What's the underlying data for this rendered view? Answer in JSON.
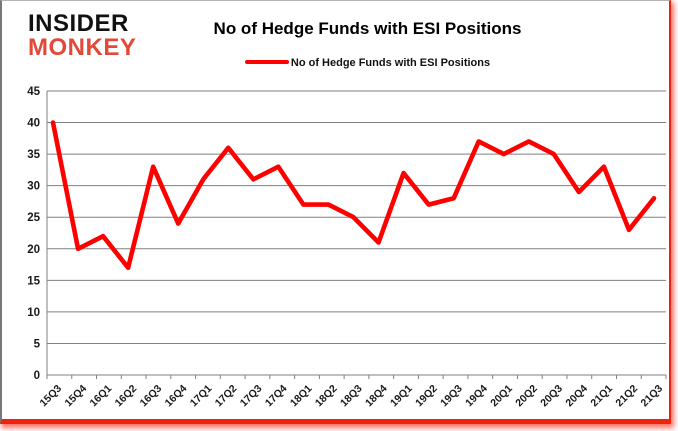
{
  "header": {
    "logo_line1": "INSIDER",
    "logo_line2": "MONKEY",
    "title": "No of Hedge Funds with ESI Positions",
    "legend_label": "No of Hedge Funds with ESI Positions"
  },
  "colors": {
    "line": "#FF0000",
    "logo_red": "#E2493B",
    "logo_black": "#111111",
    "gridline": "#808080",
    "axis_text": "#1a1a1a",
    "glow": "#EE2211"
  },
  "chart_data": {
    "type": "line",
    "title": "No of Hedge Funds with ESI Positions",
    "categories": [
      "15Q3",
      "15Q4",
      "16Q1",
      "16Q2",
      "16Q3",
      "16Q4",
      "17Q1",
      "17Q2",
      "17Q3",
      "17Q4",
      "18Q1",
      "18Q2",
      "18Q3",
      "18Q4",
      "19Q1",
      "19Q2",
      "19Q3",
      "19Q4",
      "20Q1",
      "20Q2",
      "20Q3",
      "20Q4",
      "21Q1",
      "21Q2",
      "21Q3"
    ],
    "series": [
      {
        "name": "No of Hedge Funds with ESI Positions",
        "values": [
          40,
          20,
          22,
          17,
          33,
          24,
          31,
          36,
          31,
          33,
          27,
          27,
          25,
          21,
          32,
          27,
          28,
          37,
          35,
          37,
          35,
          29,
          33,
          23,
          28
        ]
      }
    ],
    "xlabel": "",
    "ylabel": "",
    "ylim": [
      0,
      45
    ],
    "yticks": [
      0,
      5,
      10,
      15,
      20,
      25,
      30,
      35,
      40,
      45
    ],
    "grid": true,
    "legend_position": "top"
  }
}
